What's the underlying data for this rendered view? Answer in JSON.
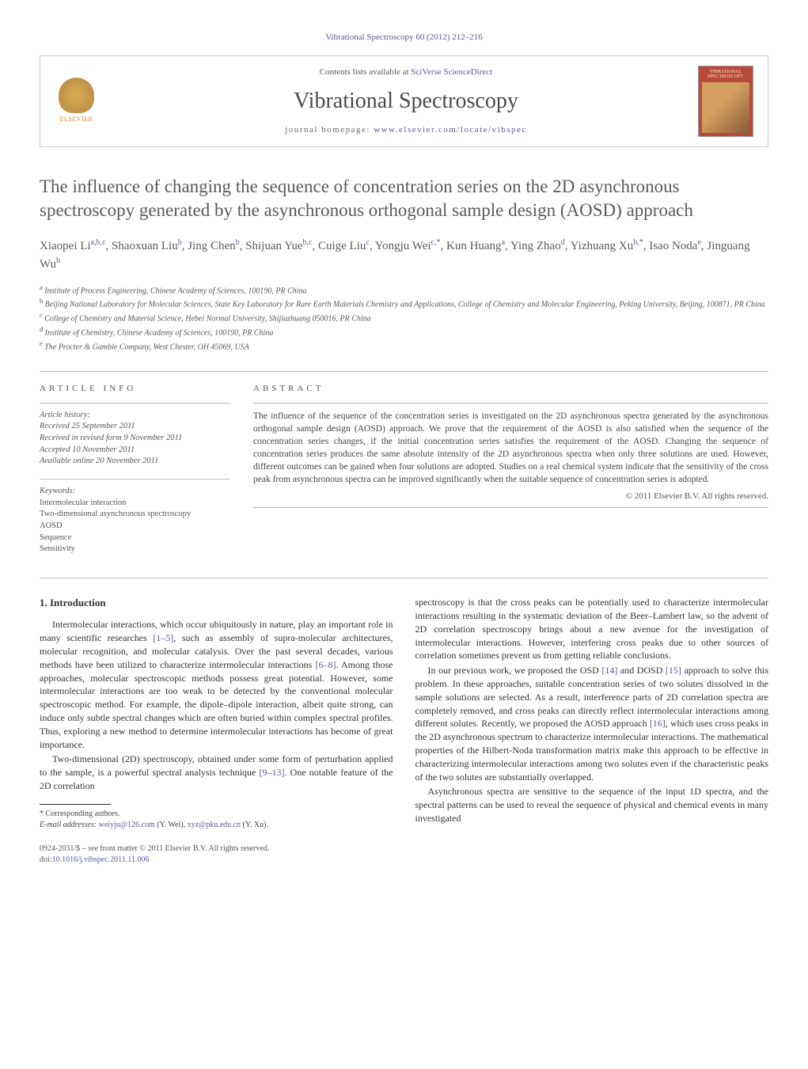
{
  "header_bar": "Vibrational Spectroscopy 60 (2012) 212–216",
  "banner": {
    "contents_prefix": "Contents lists available at ",
    "contents_link": "SciVerse ScienceDirect",
    "journal": "Vibrational Spectroscopy",
    "homepage_prefix": "journal homepage: ",
    "homepage_link": "www.elsevier.com/locate/vibspec",
    "elsevier_label": "ELSEVIER",
    "cover_title": "VIBRATIONAL SPECTROSCOPY"
  },
  "title": "The influence of changing the sequence of concentration series on the 2D asynchronous spectroscopy generated by the asynchronous orthogonal sample design (AOSD) approach",
  "authors_html": "Xiaopei Li<sup>a,b,c</sup>, Shaoxuan Liu<sup>b</sup>, Jing Chen<sup>b</sup>, Shijuan Yue<sup>b,c</sup>, Cuige Liu<sup>c</sup>, Yongju Wei<sup>c,*</sup>, Kun Huang<sup>a</sup>, Ying Zhao<sup>d</sup>, Yizhuang Xu<sup>b,*</sup>, Isao Noda<sup>e</sup>, Jinguang Wu<sup>b</sup>",
  "affiliations": [
    {
      "sup": "a",
      "text": "Institute of Process Engineering, Chinese Academy of Sciences, 100190, PR China"
    },
    {
      "sup": "b",
      "text": "Beijing National Laboratory for Molecular Sciences, State Key Laboratory for Rare Earth Materials Chemistry and Applications, College of Chemistry and Molecular Engineering, Peking University, Beijing, 100871, PR China"
    },
    {
      "sup": "c",
      "text": "College of Chemistry and Material Science, Hebei Normal University, Shijiazhuang 050016, PR China"
    },
    {
      "sup": "d",
      "text": "Institute of Chemistry, Chinese Academy of Sciences, 100190, PR China"
    },
    {
      "sup": "e",
      "text": "The Procter & Gamble Company, West Chester, OH 45069, USA"
    }
  ],
  "article_info": {
    "label": "ARTICLE INFO",
    "history_label": "Article history:",
    "history": [
      "Received 25 September 2011",
      "Received in revised form 9 November 2011",
      "Accepted 10 November 2011",
      "Available online 20 November 2011"
    ],
    "keywords_label": "Keywords:",
    "keywords": [
      "Intermolecular interaction",
      "Two-dimensional asynchronous spectroscopy",
      "AOSD",
      "Sequence",
      "Sensitivity"
    ]
  },
  "abstract": {
    "label": "ABSTRACT",
    "text": "The influence of the sequence of the concentration series is investigated on the 2D asynchronous spectra generated by the asynchronous orthogonal sample design (AOSD) approach. We prove that the requirement of the AOSD is also satisfied when the sequence of the concentration series changes, if the initial concentration series satisfies the requirement of the AOSD. Changing the sequence of concentration series produces the same absolute intensity of the 2D asynchronous spectra when only three solutions are used. However, different outcomes can be gained when four solutions are adopted. Studies on a real chemical system indicate that the sensitivity of the cross peak from asynchronous spectra can be improved significantly when the suitable sequence of concentration series is adopted.",
    "copyright": "© 2011 Elsevier B.V. All rights reserved."
  },
  "intro": {
    "heading": "1. Introduction",
    "p1_a": "Intermolecular interactions, which occur ubiquitously in nature, play an important role in many scientific researches ",
    "p1_ref1": "[1–5]",
    "p1_b": ", such as assembly of supra-molecular architectures, molecular recognition, and molecular catalysis. Over the past several decades, various methods have been utilized to characterize intermolecular interactions ",
    "p1_ref2": "[6–8]",
    "p1_c": ". Among those approaches, molecular spectroscopic methods possess great potential. However, some intermolecular interactions are too weak to be detected by the conventional molecular spectroscopic method. For example, the dipole–dipole interaction, albeit quite strong, can induce only subtle spectral changes which are often buried within complex spectral profiles. Thus, exploring a new method to determine intermolecular interactions has become of great importance.",
    "p2_a": "Two-dimensional (2D) spectroscopy, obtained under some form of perturbation applied to the sample, is a powerful spectral analysis technique ",
    "p2_ref1": "[9–13]",
    "p2_b": ". One notable feature of the 2D correlation",
    "p3": "spectroscopy is that the cross peaks can be potentially used to characterize intermolecular interactions resulting in the systematic deviation of the Beer–Lambert law, so the advent of 2D correlation spectroscopy brings about a new avenue for the investigation of intermolecular interactions. However, interfering cross peaks due to other sources of correlation sometimes prevent us from getting reliable conclusions.",
    "p4_a": "In our previous work, we proposed the OSD ",
    "p4_ref1": "[14]",
    "p4_b": " and DOSD ",
    "p4_ref2": "[15]",
    "p4_c": " approach to solve this problem. In these approaches, suitable concentration series of two solutes dissolved in the sample solutions are selected. As a result, interference parts of 2D correlation spectra are completely removed, and cross peaks can directly reflect intermolecular interactions among different solutes. Recently, we proposed the AOSD approach ",
    "p4_ref3": "[16]",
    "p4_d": ", which uses cross peaks in the 2D asynchronous spectrum to characterize intermolecular interactions. The mathematical properties of the Hilbert-Noda transformation matrix make this approach to be effective in characterizing intermolecular interactions among two solutes even if the characteristic peaks of the two solutes are substantially overlapped.",
    "p5": "Asynchronous spectra are sensitive to the sequence of the input 1D spectra, and the spectral patterns can be used to reveal the sequence of physical and chemical events in many investigated"
  },
  "footnotes": {
    "corresponding": "* Corresponding authors.",
    "email_label": "E-mail addresses: ",
    "email1": "weiyju@126.com",
    "email1_who": " (Y. Wei), ",
    "email2": "xyz@pku.edu.cn",
    "email2_who": " (Y. Xu)."
  },
  "footer": {
    "line1": "0924-2031/$ – see front matter © 2011 Elsevier B.V. All rights reserved.",
    "doi_prefix": "doi:",
    "doi": "10.1016/j.vibspec.2011.11.006"
  },
  "colors": {
    "link": "#5a5a9a",
    "text": "#333333",
    "heading_gray": "#5a5a5a",
    "cover_bg": "#b84a3a"
  },
  "typography": {
    "body_pt": 12,
    "title_pt": 23,
    "journal_pt": 28,
    "abstract_pt": 11.5,
    "affil_pt": 10,
    "footnote_pt": 10
  }
}
